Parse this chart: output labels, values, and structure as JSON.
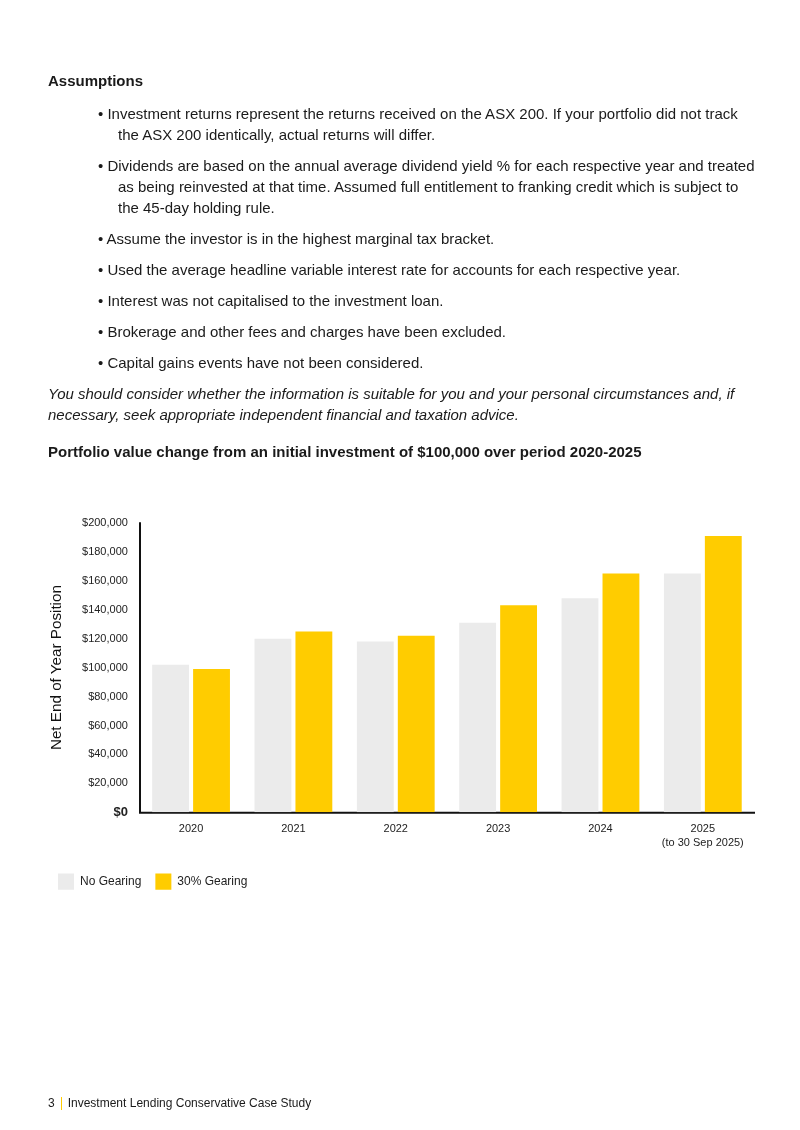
{
  "chart_data": {
    "type": "bar",
    "title": "Portfolio value change from an initial investment of $100,000 over period 2020-2025",
    "ylabel": "Net End of Year Position",
    "categories": [
      "2020",
      "2021",
      "2022",
      "2023",
      "2024",
      "2025\n(to 30 Sep 2025)"
    ],
    "series": [
      {
        "name": "No Gearing",
        "color": "#ebebeb",
        "values": [
          102000,
          120000,
          118000,
          131000,
          148000,
          165000
        ]
      },
      {
        "name": "30% Gearing",
        "color": "#ffcc00",
        "values": [
          99000,
          125000,
          122000,
          143000,
          165000,
          191000
        ]
      }
    ],
    "ylim": [
      0,
      200000
    ],
    "yticks": [
      {
        "value": 0,
        "label": "$0"
      },
      {
        "value": 20000,
        "label": "$20,000"
      },
      {
        "value": 40000,
        "label": "$40,000"
      },
      {
        "value": 60000,
        "label": "$60,000"
      },
      {
        "value": 80000,
        "label": "$80,000"
      },
      {
        "value": 100000,
        "label": "$100,000"
      },
      {
        "value": 120000,
        "label": "$120,000"
      },
      {
        "value": 140000,
        "label": "$140,000"
      },
      {
        "value": 160000,
        "label": "$160,000"
      },
      {
        "value": 180000,
        "label": "$180,000"
      },
      {
        "value": 200000,
        "label": "$200,000"
      }
    ],
    "grid": false,
    "legend": "bottom left",
    "annotations": [
      "Assumptions",
      "• Investment returns represent the returns received on the ASX 200. If your portfolio did not track the ASX 200 identically, actual returns will differ.",
      "• Dividends are based on the annual average dividend yield % for each respective year and treated as being reinvested at that time. Assumed full entitlement to franking credit which is subject to the 45-day holding rule.",
      "• Assume the investor is in the highest marginal tax bracket.",
      "• Used the average headline variable interest rate for accounts for each respective year.",
      "• Interest was not capitalised to the investment loan.",
      "• Brokerage and other fees and charges have been excluded.",
      "• Capital gains events have not been considered.",
      "You should consider whether the information is suitable for you and your personal circumstances and, if necessary, seek appropriate independent financial and taxation advice.",
      "3",
      "Investment Lending Conservative Case Study"
    ]
  }
}
